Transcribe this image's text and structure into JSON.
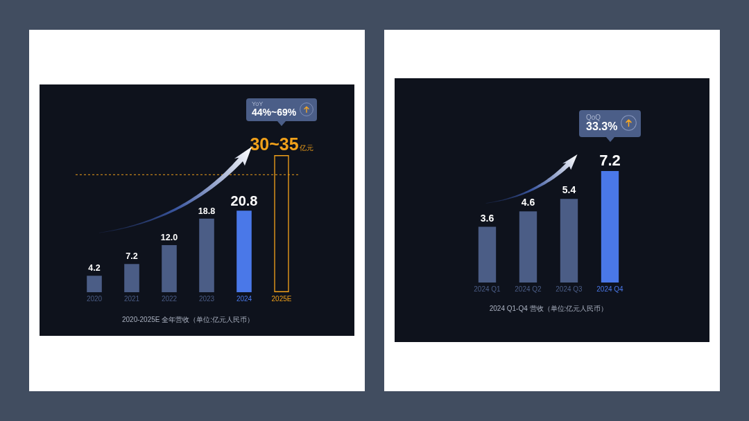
{
  "chart_data": [
    {
      "type": "bar",
      "title": "2020-2025E 全年营收（单位:亿元人民币）",
      "categories": [
        "2020",
        "2021",
        "2022",
        "2023",
        "2024",
        "2025E"
      ],
      "values": [
        4.2,
        7.2,
        12.0,
        18.8,
        20.8,
        35
      ],
      "colors": [
        "#4b5d86",
        "#4b5d86",
        "#4b5d86",
        "#4b5d86",
        "#4a78e8",
        "#f0a01a"
      ],
      "value_labels": [
        "4.2",
        "7.2",
        "12.0",
        "18.8",
        "20.8",
        "30~35亿元"
      ],
      "ref_lines": [
        {
          "axis": "y",
          "value": 30,
          "color": "#f0a01a",
          "line_style": "dashed"
        }
      ],
      "tick_labels": "x",
      "annotations": [
        "YoY\n44%~69%"
      ]
    },
    {
      "type": "bar",
      "title": "2024 Q1-Q4 营收（单位:亿元人民币）",
      "categories": [
        "2024 Q1",
        "2024 Q2",
        "2024 Q3",
        "2024 Q4"
      ],
      "values": [
        3.6,
        4.6,
        5.4,
        7.2
      ],
      "colors": [
        "#4b5d86",
        "#4b5d86",
        "#4b5d86",
        "#4a78e8"
      ],
      "tick_labels": "x",
      "data_labels": true,
      "annotations": [
        "QoQ\n33.3%"
      ]
    }
  ]
}
